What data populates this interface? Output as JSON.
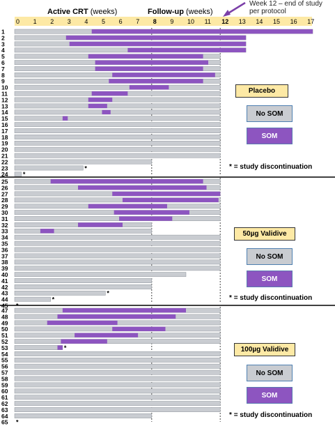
{
  "chart_data": {
    "type": "bar",
    "x_range": [
      0,
      17
    ],
    "x_ticks": [
      "0",
      "1",
      "2",
      "3",
      "4",
      "5",
      "6",
      "7",
      "8",
      "9",
      "10",
      "11",
      "12",
      "13",
      "14",
      "15",
      "16",
      "17"
    ],
    "header_active_bold": "Active CRT",
    "header_active_rest": " (weeks)",
    "header_followup_bold": "Follow-up",
    "header_followup_rest": " (weeks)",
    "annotation": "Week 12 – end of study per protocol",
    "disc_marker": "*",
    "panels": [
      {
        "legend_title": "Placebo",
        "legend_nosom": "No SOM",
        "legend_som": "SOM",
        "disc_label": "= study discontinuation",
        "rows": [
          {
            "id": "1",
            "end": 17.4,
            "som": [
              [
                4.5,
                17.4
              ]
            ]
          },
          {
            "id": "2",
            "end": 13.5,
            "som": [
              [
                3,
                13.5
              ]
            ]
          },
          {
            "id": "3",
            "end": 13.5,
            "som": [
              [
                3.2,
                13.5
              ]
            ]
          },
          {
            "id": "4",
            "end": 13.5,
            "som": [
              [
                6.6,
                13.5
              ]
            ]
          },
          {
            "id": "5",
            "end": 12,
            "som": [
              [
                4.3,
                11
              ]
            ]
          },
          {
            "id": "6",
            "end": 12,
            "som": [
              [
                4.7,
                11.3
              ]
            ]
          },
          {
            "id": "7",
            "end": 12,
            "som": [
              [
                4.7,
                11
              ]
            ]
          },
          {
            "id": "8",
            "end": 12,
            "som": [
              [
                5.7,
                11.7
              ]
            ]
          },
          {
            "id": "9",
            "end": 12,
            "som": [
              [
                5.5,
                11
              ]
            ]
          },
          {
            "id": "10",
            "end": 12,
            "som": [
              [
                6.7,
                9
              ]
            ]
          },
          {
            "id": "11",
            "end": 12,
            "som": [
              [
                4.5,
                6.6
              ]
            ]
          },
          {
            "id": "12",
            "end": 12,
            "som": [
              [
                4.3,
                5.7
              ]
            ]
          },
          {
            "id": "13",
            "end": 12,
            "som": [
              [
                4.3,
                5.4
              ]
            ]
          },
          {
            "id": "14",
            "end": 12,
            "som": [
              [
                5.1,
                5.6
              ]
            ]
          },
          {
            "id": "15",
            "end": 12,
            "som": [
              [
                2.8,
                3.1
              ]
            ]
          },
          {
            "id": "16",
            "end": 12,
            "som": []
          },
          {
            "id": "17",
            "end": 12,
            "som": []
          },
          {
            "id": "18",
            "end": 12,
            "som": []
          },
          {
            "id": "19",
            "end": 12,
            "som": []
          },
          {
            "id": "20",
            "end": 12,
            "som": []
          },
          {
            "id": "21",
            "end": 12,
            "som": []
          },
          {
            "id": "22",
            "end": 8,
            "som": []
          },
          {
            "id": "23",
            "end": 4,
            "som": [],
            "disc": true
          },
          {
            "id": "24",
            "end": 0.4,
            "som": [],
            "disc": true
          }
        ]
      },
      {
        "legend_title": "50µg Validive",
        "legend_nosom": "No SOM",
        "legend_som": "SOM",
        "disc_label": "= study discontinuation",
        "rows": [
          {
            "id": "25",
            "end": 12,
            "som": [
              [
                2.1,
                11
              ]
            ]
          },
          {
            "id": "26",
            "end": 12,
            "som": [
              [
                3.7,
                11.2
              ]
            ]
          },
          {
            "id": "27",
            "end": 12,
            "som": [
              [
                5.7,
                12
              ]
            ]
          },
          {
            "id": "28",
            "end": 12,
            "som": [
              [
                6.3,
                11.9
              ]
            ]
          },
          {
            "id": "29",
            "end": 12,
            "som": [
              [
                4.3,
                8.9
              ]
            ]
          },
          {
            "id": "30",
            "end": 12,
            "som": [
              [
                5.8,
                10.2
              ]
            ]
          },
          {
            "id": "31",
            "end": 12,
            "som": [
              [
                6.1,
                9.2
              ]
            ]
          },
          {
            "id": "32",
            "end": 8,
            "som": [
              [
                3.7,
                6.3
              ]
            ]
          },
          {
            "id": "33",
            "end": 8,
            "som": [
              [
                1.5,
                2.3
              ]
            ]
          },
          {
            "id": "34",
            "end": 12,
            "som": []
          },
          {
            "id": "35",
            "end": 12,
            "som": []
          },
          {
            "id": "36",
            "end": 12,
            "som": []
          },
          {
            "id": "37",
            "end": 12,
            "som": []
          },
          {
            "id": "38",
            "end": 12,
            "som": []
          },
          {
            "id": "39",
            "end": 12,
            "som": []
          },
          {
            "id": "40",
            "end": 10,
            "som": []
          },
          {
            "id": "41",
            "end": 8,
            "som": []
          },
          {
            "id": "42",
            "end": 8,
            "som": []
          },
          {
            "id": "43",
            "end": 5.3,
            "som": [],
            "disc": true
          },
          {
            "id": "44",
            "end": 2.1,
            "som": [],
            "disc": true
          },
          {
            "id": "45",
            "end": 0,
            "som": [],
            "disc": true
          }
        ]
      },
      {
        "legend_title": "100µg Validive",
        "legend_nosom": "No SOM",
        "legend_som": "SOM",
        "disc_label": "= study discontinuation",
        "rows": [
          {
            "id": "47",
            "end": 12,
            "som": [
              [
                2.8,
                10
              ]
            ]
          },
          {
            "id": "48",
            "end": 12,
            "som": [
              [
                2.5,
                9.4
              ]
            ]
          },
          {
            "id": "49",
            "end": 12,
            "som": [
              [
                1.9,
                6
              ]
            ]
          },
          {
            "id": "50",
            "end": 12,
            "som": [
              [
                5.7,
                8.8
              ]
            ]
          },
          {
            "id": "51",
            "end": 12,
            "som": [
              [
                3.5,
                7.2
              ]
            ]
          },
          {
            "id": "52",
            "end": 12,
            "som": [
              [
                2.7,
                5.4
              ]
            ]
          },
          {
            "id": "53",
            "end": 2.8,
            "som": [
              [
                2.5,
                2.8
              ]
            ],
            "disc": true
          },
          {
            "id": "54",
            "end": 12,
            "som": []
          },
          {
            "id": "55",
            "end": 12,
            "som": []
          },
          {
            "id": "56",
            "end": 12,
            "som": []
          },
          {
            "id": "57",
            "end": 12,
            "som": []
          },
          {
            "id": "58",
            "end": 12,
            "som": []
          },
          {
            "id": "59",
            "end": 12,
            "som": []
          },
          {
            "id": "60",
            "end": 12,
            "som": []
          },
          {
            "id": "61",
            "end": 12,
            "som": []
          },
          {
            "id": "62",
            "end": 12,
            "som": []
          },
          {
            "id": "63",
            "end": 12,
            "som": []
          },
          {
            "id": "64",
            "end": 8,
            "som": []
          },
          {
            "id": "65",
            "end": 0,
            "som": [],
            "disc": true
          }
        ]
      }
    ],
    "colors": {
      "no_som": "#c9ccd1",
      "no_som_edge": "#8f959c",
      "som": "#8d55c0",
      "axis_band": "#fde9a5",
      "annotation_arrow": "#7b3fa8"
    }
  }
}
